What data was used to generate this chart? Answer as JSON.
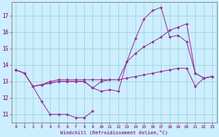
{
  "xlabel": "Windchill (Refroidissement éolien,°C)",
  "x": [
    0,
    1,
    2,
    3,
    4,
    5,
    6,
    7,
    8,
    9,
    10,
    11,
    12,
    13,
    14,
    15,
    16,
    17,
    18,
    19,
    20,
    21,
    22,
    23
  ],
  "line1_x": [
    2,
    3,
    4,
    5,
    6,
    7,
    8,
    9
  ],
  "line1_y": [
    12.7,
    11.8,
    11.0,
    11.0,
    11.0,
    10.8,
    10.8,
    11.2
  ],
  "line2": [
    13.7,
    13.5,
    12.7,
    12.8,
    12.9,
    13.0,
    13.0,
    13.0,
    13.0,
    12.6,
    12.4,
    12.5,
    12.4,
    14.2,
    15.6,
    16.8,
    17.3,
    17.5,
    15.7,
    15.8,
    15.4,
    13.5,
    13.2,
    13.3
  ],
  "line3": [
    13.7,
    13.5,
    12.7,
    12.8,
    12.9,
    13.0,
    13.0,
    13.0,
    13.0,
    12.6,
    13.0,
    13.1,
    13.1,
    14.2,
    14.7,
    15.1,
    15.4,
    15.7,
    16.1,
    16.3,
    16.5,
    13.5,
    13.2,
    13.3
  ],
  "line4": [
    13.7,
    13.5,
    12.7,
    12.8,
    13.0,
    13.1,
    13.1,
    13.1,
    13.1,
    13.1,
    13.1,
    13.1,
    13.1,
    13.2,
    13.3,
    13.4,
    13.5,
    13.6,
    13.7,
    13.8,
    13.8,
    12.7,
    13.2,
    13.3
  ],
  "line_color": "#993399",
  "bg_color": "#cceeff",
  "grid_color": "#99cccc",
  "xlim": [
    -0.5,
    23.5
  ],
  "ylim": [
    10.5,
    17.8
  ],
  "yticks": [
    11,
    12,
    13,
    14,
    15,
    16,
    17
  ],
  "xticks": [
    0,
    1,
    2,
    3,
    4,
    5,
    6,
    7,
    8,
    9,
    10,
    11,
    12,
    13,
    14,
    15,
    16,
    17,
    18,
    19,
    20,
    21,
    22,
    23
  ]
}
